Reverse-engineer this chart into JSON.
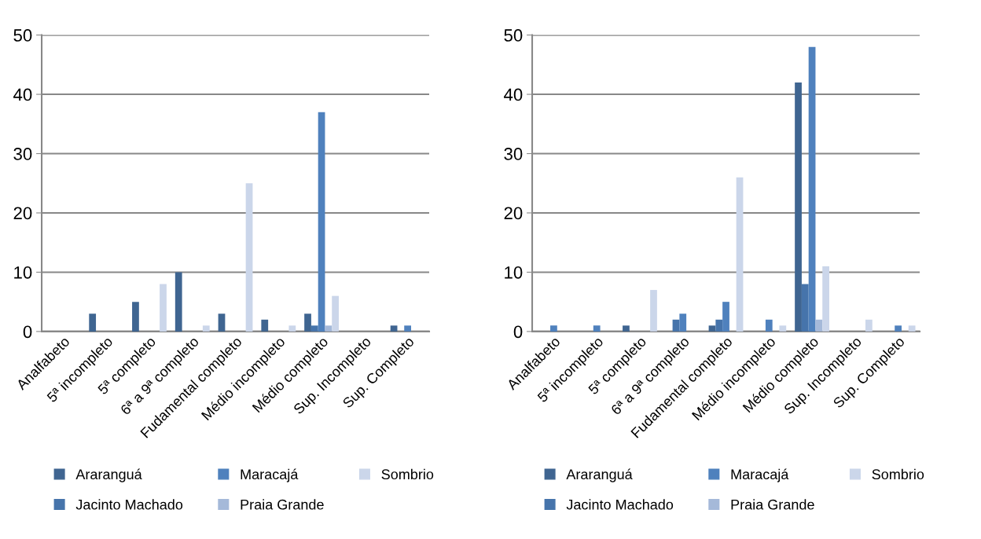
{
  "chart_data": [
    {
      "type": "bar",
      "categories": [
        "Analfabeto",
        "5ª incompleto",
        "5ª completo",
        "6ª a 9ª completo",
        "Fudamental completo",
        "Médio incompleto",
        "Médio completo",
        "Sup. Incompleto",
        "Sup. Completo"
      ],
      "series": [
        {
          "name": "Araranguá",
          "color": "#3f6591",
          "values": [
            0,
            3,
            5,
            10,
            3,
            2,
            3,
            0,
            1
          ]
        },
        {
          "name": "Jacinto Machado",
          "color": "#4674ab",
          "values": [
            0,
            0,
            0,
            0,
            0,
            0,
            1,
            0,
            0
          ]
        },
        {
          "name": "Maracajá",
          "color": "#4f81bd",
          "values": [
            0,
            0,
            0,
            0,
            0,
            0,
            37,
            0,
            1
          ]
        },
        {
          "name": "Praia Grande",
          "color": "#a5b9d9",
          "values": [
            0,
            0,
            0,
            0,
            0,
            0,
            1,
            0,
            0
          ]
        },
        {
          "name": "Sombrio",
          "color": "#cbd6ea",
          "values": [
            0,
            0,
            8,
            1,
            25,
            1,
            6,
            0,
            0
          ]
        }
      ],
      "ylim": [
        0,
        50
      ],
      "yticks": [
        0,
        10,
        20,
        30,
        40,
        50
      ],
      "grid": "y",
      "legend": "bottom"
    },
    {
      "type": "bar",
      "categories": [
        "Analfabeto",
        "5ª incompleto",
        "5ª completo",
        "6ª a 9ª completo",
        "Fudamental completo",
        "Médio incompleto",
        "Médio completo",
        "Sup. Incompleto",
        "Sup. Completo"
      ],
      "series": [
        {
          "name": "Araranguá",
          "color": "#3f6591",
          "values": [
            0,
            0,
            1,
            0,
            1,
            0,
            42,
            0,
            0
          ]
        },
        {
          "name": "Jacinto Machado",
          "color": "#4674ab",
          "values": [
            0,
            0,
            0,
            2,
            2,
            0,
            8,
            0,
            0
          ]
        },
        {
          "name": "Maracajá",
          "color": "#4f81bd",
          "values": [
            1,
            1,
            0,
            3,
            5,
            2,
            48,
            0,
            1
          ]
        },
        {
          "name": "Praia Grande",
          "color": "#a5b9d9",
          "values": [
            0,
            0,
            0,
            0,
            0,
            0,
            2,
            0,
            0
          ]
        },
        {
          "name": "Sombrio",
          "color": "#cbd6ea",
          "values": [
            0,
            0,
            7,
            0,
            26,
            1,
            11,
            2,
            1
          ]
        }
      ],
      "ylim": [
        0,
        50
      ],
      "yticks": [
        0,
        10,
        20,
        30,
        40,
        50
      ],
      "grid": "y",
      "legend": "bottom"
    }
  ]
}
